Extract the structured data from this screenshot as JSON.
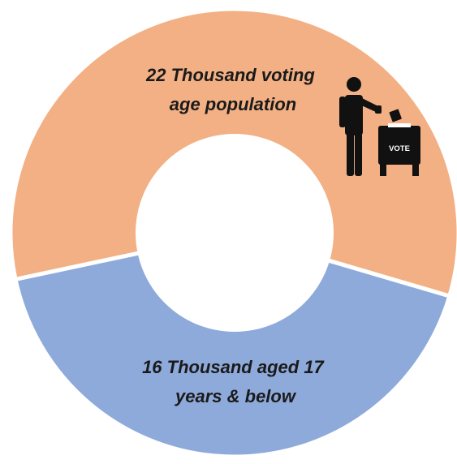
{
  "chart_data": {
    "type": "pie",
    "variant": "donut",
    "title": "",
    "slices": [
      {
        "value": 22,
        "unit": "Thousand",
        "label_lines": [
          "22 Thousand voting",
          "age population"
        ],
        "color": "#F2B084"
      },
      {
        "value": 16,
        "unit": "Thousand",
        "label_lines": [
          "16 Thousand aged 17",
          "years & below"
        ],
        "color": "#8EAADB"
      }
    ],
    "separator_color": "#ffffff",
    "hole_color": "#ffffff",
    "legend": "none"
  },
  "icon": {
    "name": "voter-ballot-box-icon",
    "box_text": "VOTE",
    "color": "#111111"
  }
}
